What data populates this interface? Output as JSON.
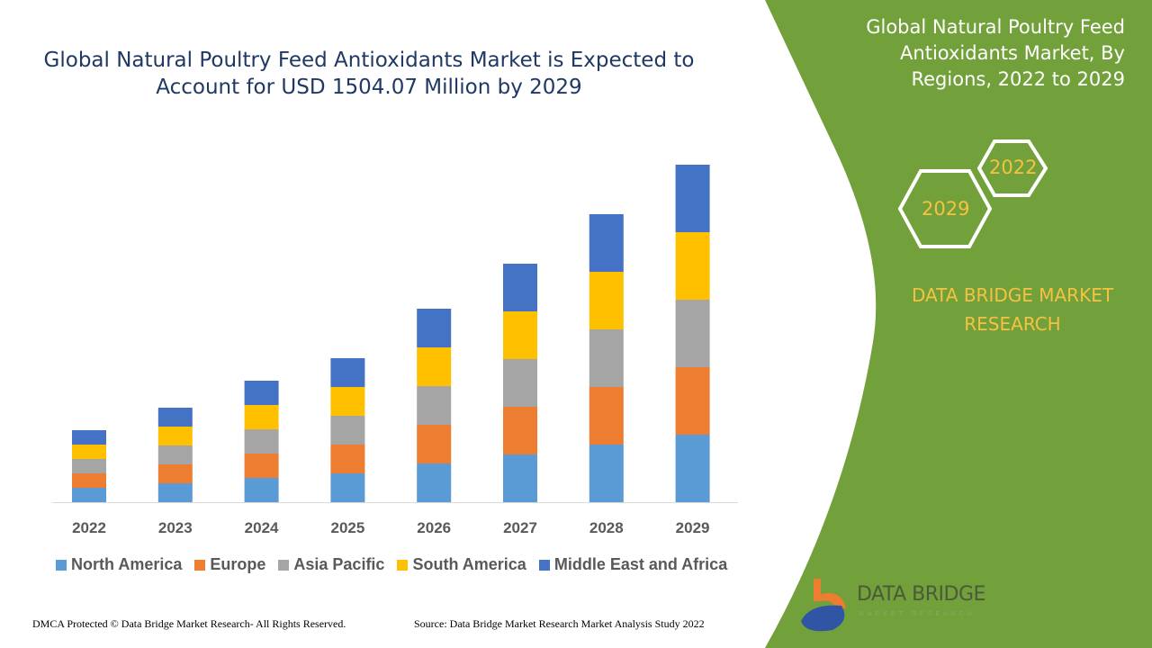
{
  "title": "Global Natural Poultry Feed Antioxidants Market is Expected to Account for USD 1504.07 Million by 2029",
  "side_panel": {
    "title": "Global Natural Poultry Feed Antioxidants Market, By Regions, 2022 to 2029",
    "hex_years": [
      "2022",
      "2029"
    ],
    "brand": "DATA BRIDGE MARKET RESEARCH",
    "logo_text": "DATA BRIDGE",
    "logo_subtext": "MARKET RESEARCH",
    "panel_color": "#72a03a"
  },
  "footer": {
    "left": "DMCA Protected © Data Bridge Market Research- All Rights Reserved.",
    "right": "Source: Data Bridge Market Research Market Analysis Study 2022"
  },
  "chart_data": {
    "type": "bar",
    "stacked": true,
    "title": "Global Natural Poultry Feed Antioxidants Market is Expected to Account for USD 1504.07 Million by 2029",
    "xlabel": "",
    "ylabel": "",
    "y_axis_shown": false,
    "grid": false,
    "legend_position": "bottom",
    "categories": [
      "2022",
      "2023",
      "2024",
      "2025",
      "2026",
      "2027",
      "2028",
      "2029"
    ],
    "series": [
      {
        "name": "North America",
        "color": "#5b9bd5",
        "values": [
          16,
          21,
          27,
          32,
          43,
          53,
          64,
          75
        ]
      },
      {
        "name": "Europe",
        "color": "#ed7d31",
        "values": [
          16,
          21,
          27,
          32,
          43,
          53,
          64,
          75
        ]
      },
      {
        "name": "Asia Pacific",
        "color": "#a5a5a5",
        "values": [
          16,
          21,
          27,
          32,
          43,
          53,
          64,
          75
        ]
      },
      {
        "name": "South America",
        "color": "#ffc000",
        "values": [
          16,
          21,
          27,
          32,
          43,
          53,
          64,
          75
        ]
      },
      {
        "name": "Middle East and Africa",
        "color": "#4472c4",
        "values": [
          16,
          21,
          27,
          32,
          43,
          53,
          64,
          75
        ]
      }
    ]
  }
}
